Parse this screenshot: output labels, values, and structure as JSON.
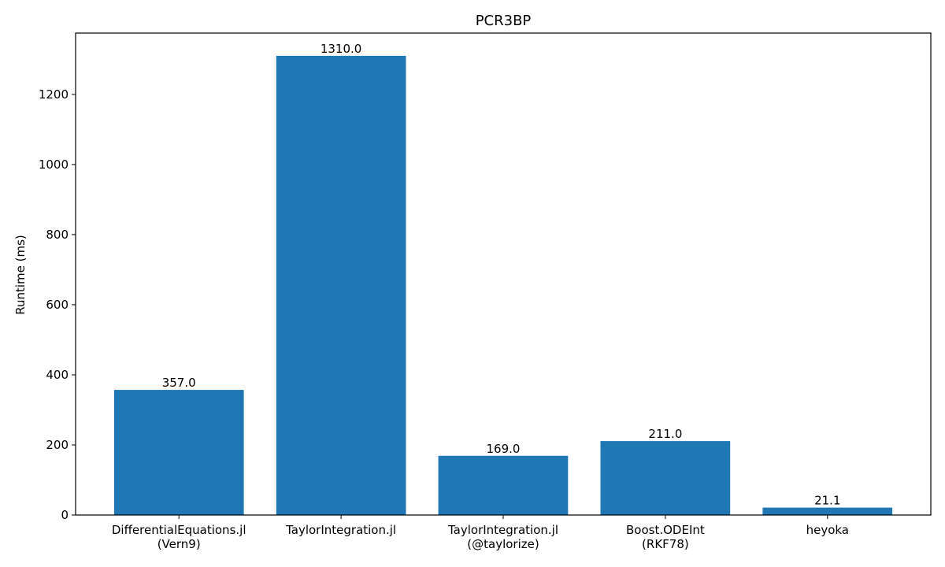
{
  "chart_data": {
    "type": "bar",
    "title": "PCR3BP",
    "xlabel": "",
    "ylabel": "Runtime (ms)",
    "categories": [
      [
        "DifferentialEquations.jl",
        "(Vern9)"
      ],
      [
        "TaylorIntegration.jl"
      ],
      [
        "TaylorIntegration.jl",
        "(@taylorize)"
      ],
      [
        "Boost.ODEInt",
        "(RKF78)"
      ],
      [
        "heyoka"
      ]
    ],
    "values": [
      357.0,
      1310.0,
      169.0,
      211.0,
      21.1
    ],
    "value_labels": [
      "357.0",
      "1310.0",
      "169.0",
      "211.0",
      "21.1"
    ],
    "ylim": [
      0,
      1375
    ],
    "yticks": [
      0,
      200,
      400,
      600,
      800,
      1000,
      1200
    ],
    "bar_color": "#1f77b4",
    "grid": false,
    "legend": "none"
  }
}
